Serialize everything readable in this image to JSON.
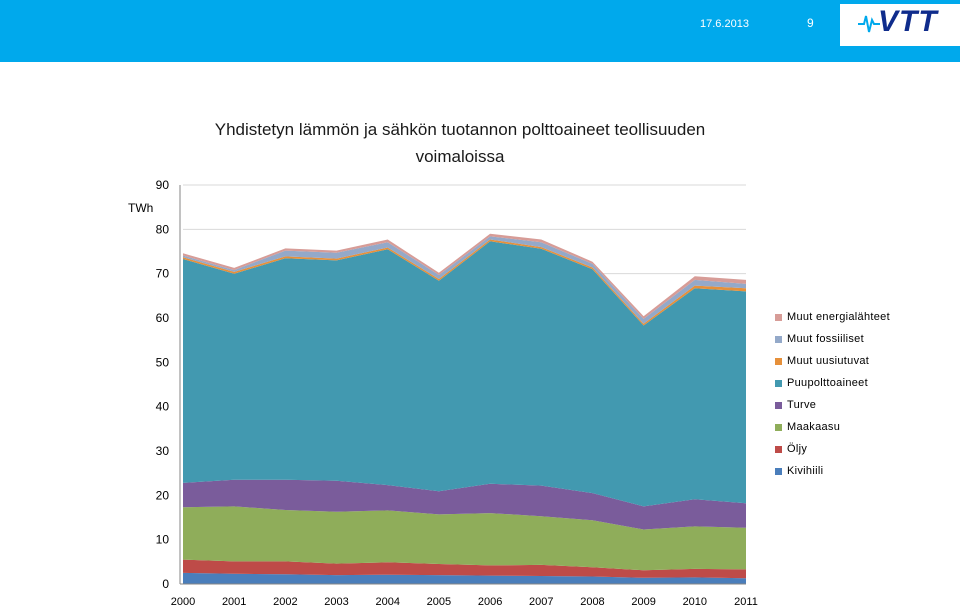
{
  "header": {
    "date": "17.6.2013",
    "page_number": "9",
    "logo_text": "VTT"
  },
  "colors": {
    "header_band": "#00a9ec",
    "logo": "#0f2c8c"
  },
  "chart_data": {
    "type": "area",
    "stacked": true,
    "title_line1": "Yhdistetyn lämmön ja sähkön tuotannon polttoaineet teollisuuden",
    "title_line2": "voimaloissa",
    "unit_label": "TWh",
    "ylim": [
      0,
      90
    ],
    "yticks": [
      0,
      10,
      20,
      30,
      40,
      50,
      60,
      70,
      80,
      90
    ],
    "categories": [
      "2000",
      "2001",
      "2002",
      "2003",
      "2004",
      "2005",
      "2006",
      "2007",
      "2008",
      "2009",
      "2010",
      "2011"
    ],
    "grid": true,
    "legend_position": "right",
    "series": [
      {
        "name": "Kivihiili",
        "color": "#4a7ebb",
        "values": [
          2.5,
          2.3,
          2.2,
          2.0,
          2.1,
          2.0,
          1.9,
          1.8,
          1.7,
          1.4,
          1.5,
          1.3
        ]
      },
      {
        "name": "Öljy",
        "color": "#be4b48",
        "values": [
          3.0,
          2.8,
          2.9,
          2.6,
          2.8,
          2.5,
          2.3,
          2.5,
          2.1,
          1.7,
          1.9,
          2.0
        ]
      },
      {
        "name": "Maakaasu",
        "color": "#8fad5a",
        "values": [
          11.8,
          12.4,
          11.6,
          11.7,
          11.7,
          11.2,
          11.8,
          11.0,
          10.6,
          9.2,
          9.6,
          9.4
        ]
      },
      {
        "name": "Turve",
        "color": "#7a5c9b",
        "values": [
          5.5,
          6.0,
          6.8,
          7.0,
          5.7,
          5.2,
          6.6,
          6.9,
          6.1,
          5.2,
          6.1,
          5.5
        ]
      },
      {
        "name": "Puupolttoaineet",
        "color": "#4299b0",
        "values": [
          50.5,
          46.5,
          50.0,
          49.7,
          53.2,
          47.5,
          54.7,
          53.4,
          50.5,
          40.8,
          47.6,
          47.8
        ]
      },
      {
        "name": "Muut uusiutuvat",
        "color": "#e6903a",
        "values": [
          0.4,
          0.4,
          0.4,
          0.4,
          0.4,
          0.4,
          0.4,
          0.4,
          0.4,
          0.4,
          0.6,
          0.7
        ]
      },
      {
        "name": "Muut fossiiliset",
        "color": "#94a9c9",
        "values": [
          0.4,
          0.4,
          1.3,
          1.3,
          1.2,
          0.9,
          0.7,
          1.1,
          0.8,
          1.1,
          1.3,
          1.0
        ]
      },
      {
        "name": "Muut energialähteet",
        "color": "#d79c97",
        "values": [
          0.5,
          0.5,
          0.5,
          0.5,
          0.6,
          0.5,
          0.6,
          0.6,
          0.5,
          0.6,
          0.8,
          0.9
        ]
      }
    ]
  }
}
